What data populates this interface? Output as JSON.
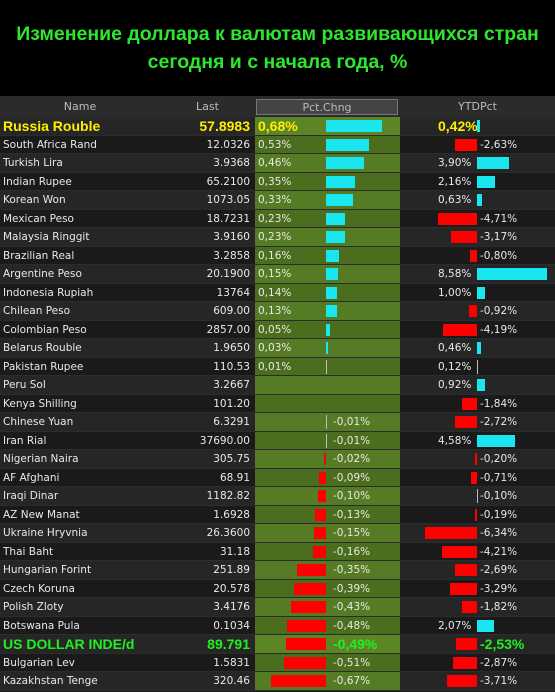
{
  "title": {
    "line1": "Изменение доллара к валютам развивающихся стран",
    "line2": "сегодня и с начала года, %"
  },
  "colors": {
    "positive": "#19e6ee",
    "negative": "#ff0000",
    "title": "#2ee62e"
  },
  "chart_data": {
    "type": "table",
    "columns": [
      "Name",
      "Last",
      "Pct.Chng",
      "YTDPct"
    ],
    "rows": [
      {
        "name": "Russia Rouble",
        "last": "57.8983",
        "pct": 0.68,
        "pct_label": "0,68%",
        "ytd": 0.42,
        "ytd_label": "0,42%",
        "style": "yellow"
      },
      {
        "name": "South Africa Rand",
        "last": "12.0326",
        "pct": 0.53,
        "pct_label": "0,53%",
        "ytd": -2.63,
        "ytd_label": "-2,63%"
      },
      {
        "name": "Turkish Lira",
        "last": "3.9368",
        "pct": 0.46,
        "pct_label": "0,46%",
        "ytd": 3.9,
        "ytd_label": "3,90%"
      },
      {
        "name": "Indian Rupee",
        "last": "65.2100",
        "pct": 0.35,
        "pct_label": "0,35%",
        "ytd": 2.16,
        "ytd_label": "2,16%"
      },
      {
        "name": "Korean Won",
        "last": "1073.05",
        "pct": 0.33,
        "pct_label": "0,33%",
        "ytd": 0.63,
        "ytd_label": "0,63%"
      },
      {
        "name": "Mexican Peso",
        "last": "18.7231",
        "pct": 0.23,
        "pct_label": "0,23%",
        "ytd": -4.71,
        "ytd_label": "-4,71%"
      },
      {
        "name": "Malaysia Ringgit",
        "last": "3.9160",
        "pct": 0.23,
        "pct_label": "0,23%",
        "ytd": -3.17,
        "ytd_label": "-3,17%"
      },
      {
        "name": "Brazilian Real",
        "last": "3.2858",
        "pct": 0.16,
        "pct_label": "0,16%",
        "ytd": -0.8,
        "ytd_label": "-0,80%"
      },
      {
        "name": "Argentine Peso",
        "last": "20.1900",
        "pct": 0.15,
        "pct_label": "0,15%",
        "ytd": 8.58,
        "ytd_label": "8,58%"
      },
      {
        "name": "Indonesia Rupiah",
        "last": "13764",
        "pct": 0.14,
        "pct_label": "0,14%",
        "ytd": 1.0,
        "ytd_label": "1,00%"
      },
      {
        "name": "Chilean Peso",
        "last": "609.00",
        "pct": 0.13,
        "pct_label": "0,13%",
        "ytd": -0.92,
        "ytd_label": "-0,92%"
      },
      {
        "name": "Colombian Peso",
        "last": "2857.00",
        "pct": 0.05,
        "pct_label": "0,05%",
        "ytd": -4.19,
        "ytd_label": "-4,19%"
      },
      {
        "name": "Belarus Rouble",
        "last": "1.9650",
        "pct": 0.03,
        "pct_label": "0,03%",
        "ytd": 0.46,
        "ytd_label": "0,46%"
      },
      {
        "name": "Pakistan Rupee",
        "last": "110.53",
        "pct": 0.01,
        "pct_label": "0,01%",
        "ytd": 0.12,
        "ytd_label": "0,12%"
      },
      {
        "name": "Peru Sol",
        "last": "3.2667",
        "pct": 0,
        "pct_label": "",
        "ytd": 0.92,
        "ytd_label": "0,92%"
      },
      {
        "name": "Kenya Shilling",
        "last": "101.20",
        "pct": 0,
        "pct_label": "",
        "ytd": -1.84,
        "ytd_label": "-1,84%"
      },
      {
        "name": "Chinese Yuan",
        "last": "6.3291",
        "pct": -0.01,
        "pct_label": "-0,01%",
        "ytd": -2.72,
        "ytd_label": "-2,72%"
      },
      {
        "name": "Iran Rial",
        "last": "37690.00",
        "pct": -0.01,
        "pct_label": "-0,01%",
        "ytd": 4.58,
        "ytd_label": "4,58%"
      },
      {
        "name": "Nigerian Naira",
        "last": "305.75",
        "pct": -0.02,
        "pct_label": "-0,02%",
        "ytd": -0.2,
        "ytd_label": "-0,20%"
      },
      {
        "name": "AF Afghani",
        "last": "68.91",
        "pct": -0.09,
        "pct_label": "-0,09%",
        "ytd": -0.71,
        "ytd_label": "-0,71%"
      },
      {
        "name": "Iraqi Dinar",
        "last": "1182.82",
        "pct": -0.1,
        "pct_label": "-0,10%",
        "ytd": -0.1,
        "ytd_label": "-0,10%"
      },
      {
        "name": "AZ New Manat",
        "last": "1.6928",
        "pct": -0.13,
        "pct_label": "-0,13%",
        "ytd": -0.19,
        "ytd_label": "-0,19%"
      },
      {
        "name": "Ukraine Hryvnia",
        "last": "26.3600",
        "pct": -0.15,
        "pct_label": "-0,15%",
        "ytd": -6.34,
        "ytd_label": "-6,34%"
      },
      {
        "name": "Thai Baht",
        "last": "31.18",
        "pct": -0.16,
        "pct_label": "-0,16%",
        "ytd": -4.21,
        "ytd_label": "-4,21%"
      },
      {
        "name": "Hungarian Forint",
        "last": "251.89",
        "pct": -0.35,
        "pct_label": "-0,35%",
        "ytd": -2.69,
        "ytd_label": "-2,69%"
      },
      {
        "name": "Czech Koruna",
        "last": "20.578",
        "pct": -0.39,
        "pct_label": "-0,39%",
        "ytd": -3.29,
        "ytd_label": "-3,29%"
      },
      {
        "name": "Polish Zloty",
        "last": "3.4176",
        "pct": -0.43,
        "pct_label": "-0,43%",
        "ytd": -1.82,
        "ytd_label": "-1,82%"
      },
      {
        "name": "Botswana Pula",
        "last": "0.1034",
        "pct": -0.48,
        "pct_label": "-0,48%",
        "ytd": 2.07,
        "ytd_label": "2,07%"
      },
      {
        "name": "US DOLLAR INDE/d",
        "last": "89.791",
        "pct": -0.49,
        "pct_label": "-0,49%",
        "ytd": -2.53,
        "ytd_label": "-2,53%",
        "style": "green"
      },
      {
        "name": "Bulgarian Lev",
        "last": "1.5831",
        "pct": -0.51,
        "pct_label": "-0,51%",
        "ytd": -2.87,
        "ytd_label": "-2,87%"
      },
      {
        "name": "Kazakhstan Tenge",
        "last": "320.46",
        "pct": -0.67,
        "pct_label": "-0,67%",
        "ytd": -3.71,
        "ytd_label": "-3,71%"
      }
    ]
  }
}
